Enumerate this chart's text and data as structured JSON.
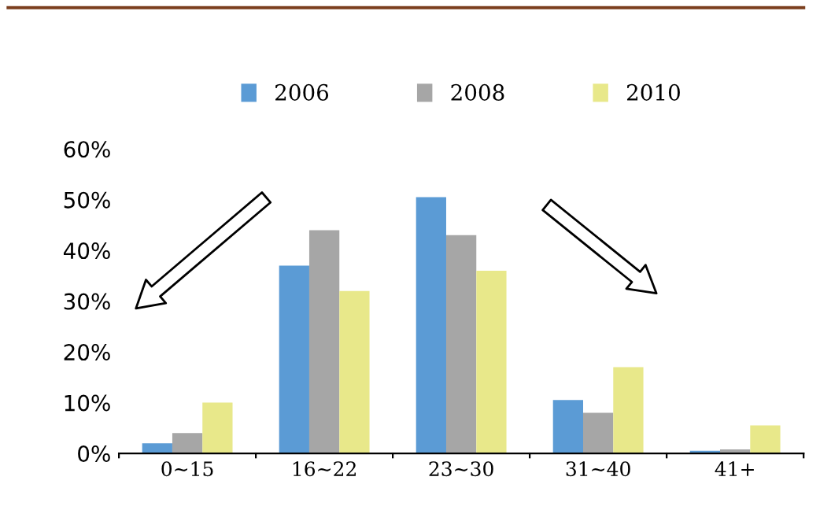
{
  "chart_data": {
    "type": "bar",
    "categories": [
      "0~15",
      "16~22",
      "23~30",
      "31~40",
      "41+"
    ],
    "series": [
      {
        "name": "2006",
        "color": "#5b9bd5",
        "values": [
          2,
          37,
          50.5,
          10.5,
          0.5
        ]
      },
      {
        "name": "2008",
        "color": "#a6a6a6",
        "values": [
          4,
          44,
          43,
          8,
          0.8
        ]
      },
      {
        "name": "2010",
        "color": "#e8e88a",
        "values": [
          10,
          32,
          36,
          17,
          5.5
        ]
      }
    ],
    "ylim": [
      0,
      60
    ],
    "yticks": [
      {
        "value": 0,
        "label": "0%"
      },
      {
        "value": 10,
        "label": "10%"
      },
      {
        "value": 20,
        "label": "20%"
      },
      {
        "value": 30,
        "label": "30%"
      },
      {
        "value": 40,
        "label": "40%"
      },
      {
        "value": 50,
        "label": "50%"
      },
      {
        "value": 60,
        "label": "60%"
      }
    ],
    "grid": false,
    "legend": "top"
  }
}
